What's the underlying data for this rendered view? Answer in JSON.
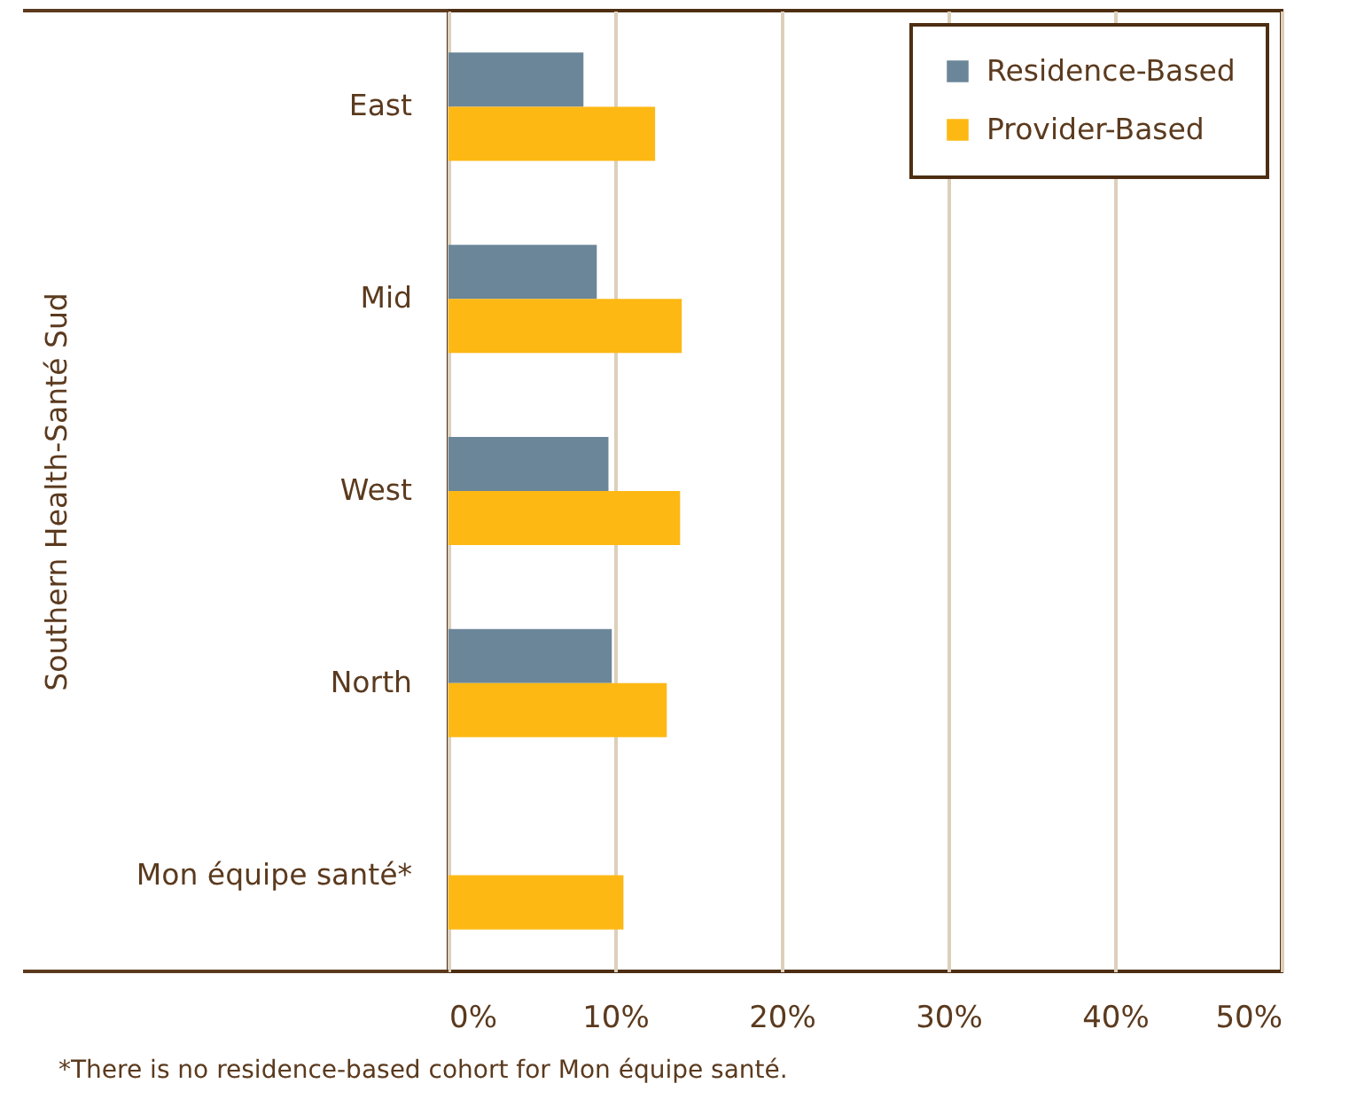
{
  "chart_data": {
    "type": "bar",
    "orientation": "horizontal",
    "ylabel": "Southern Health-Santé Sud",
    "categories": [
      "East",
      "Mid",
      "West",
      "North",
      "Mon équipe santé*"
    ],
    "series": [
      {
        "name": "Residence-Based",
        "color": "#6b8699",
        "values": [
          8.1,
          8.9,
          9.6,
          9.8,
          null
        ]
      },
      {
        "name": "Provider-Based",
        "color": "#fdb813",
        "values": [
          12.4,
          14.0,
          13.9,
          13.1,
          10.5
        ]
      }
    ],
    "xlim": [
      0,
      50
    ],
    "xticks": [
      {
        "value": 0,
        "label": "0%"
      },
      {
        "value": 10,
        "label": "10%"
      },
      {
        "value": 20,
        "label": "20%"
      },
      {
        "value": 30,
        "label": "30%"
      },
      {
        "value": 40,
        "label": "40%"
      },
      {
        "value": 50,
        "label": "50%"
      }
    ],
    "grid": "x",
    "legend": "top right",
    "annotations": [
      "*There is no residence-based cohort for Mon équipe santé."
    ]
  }
}
